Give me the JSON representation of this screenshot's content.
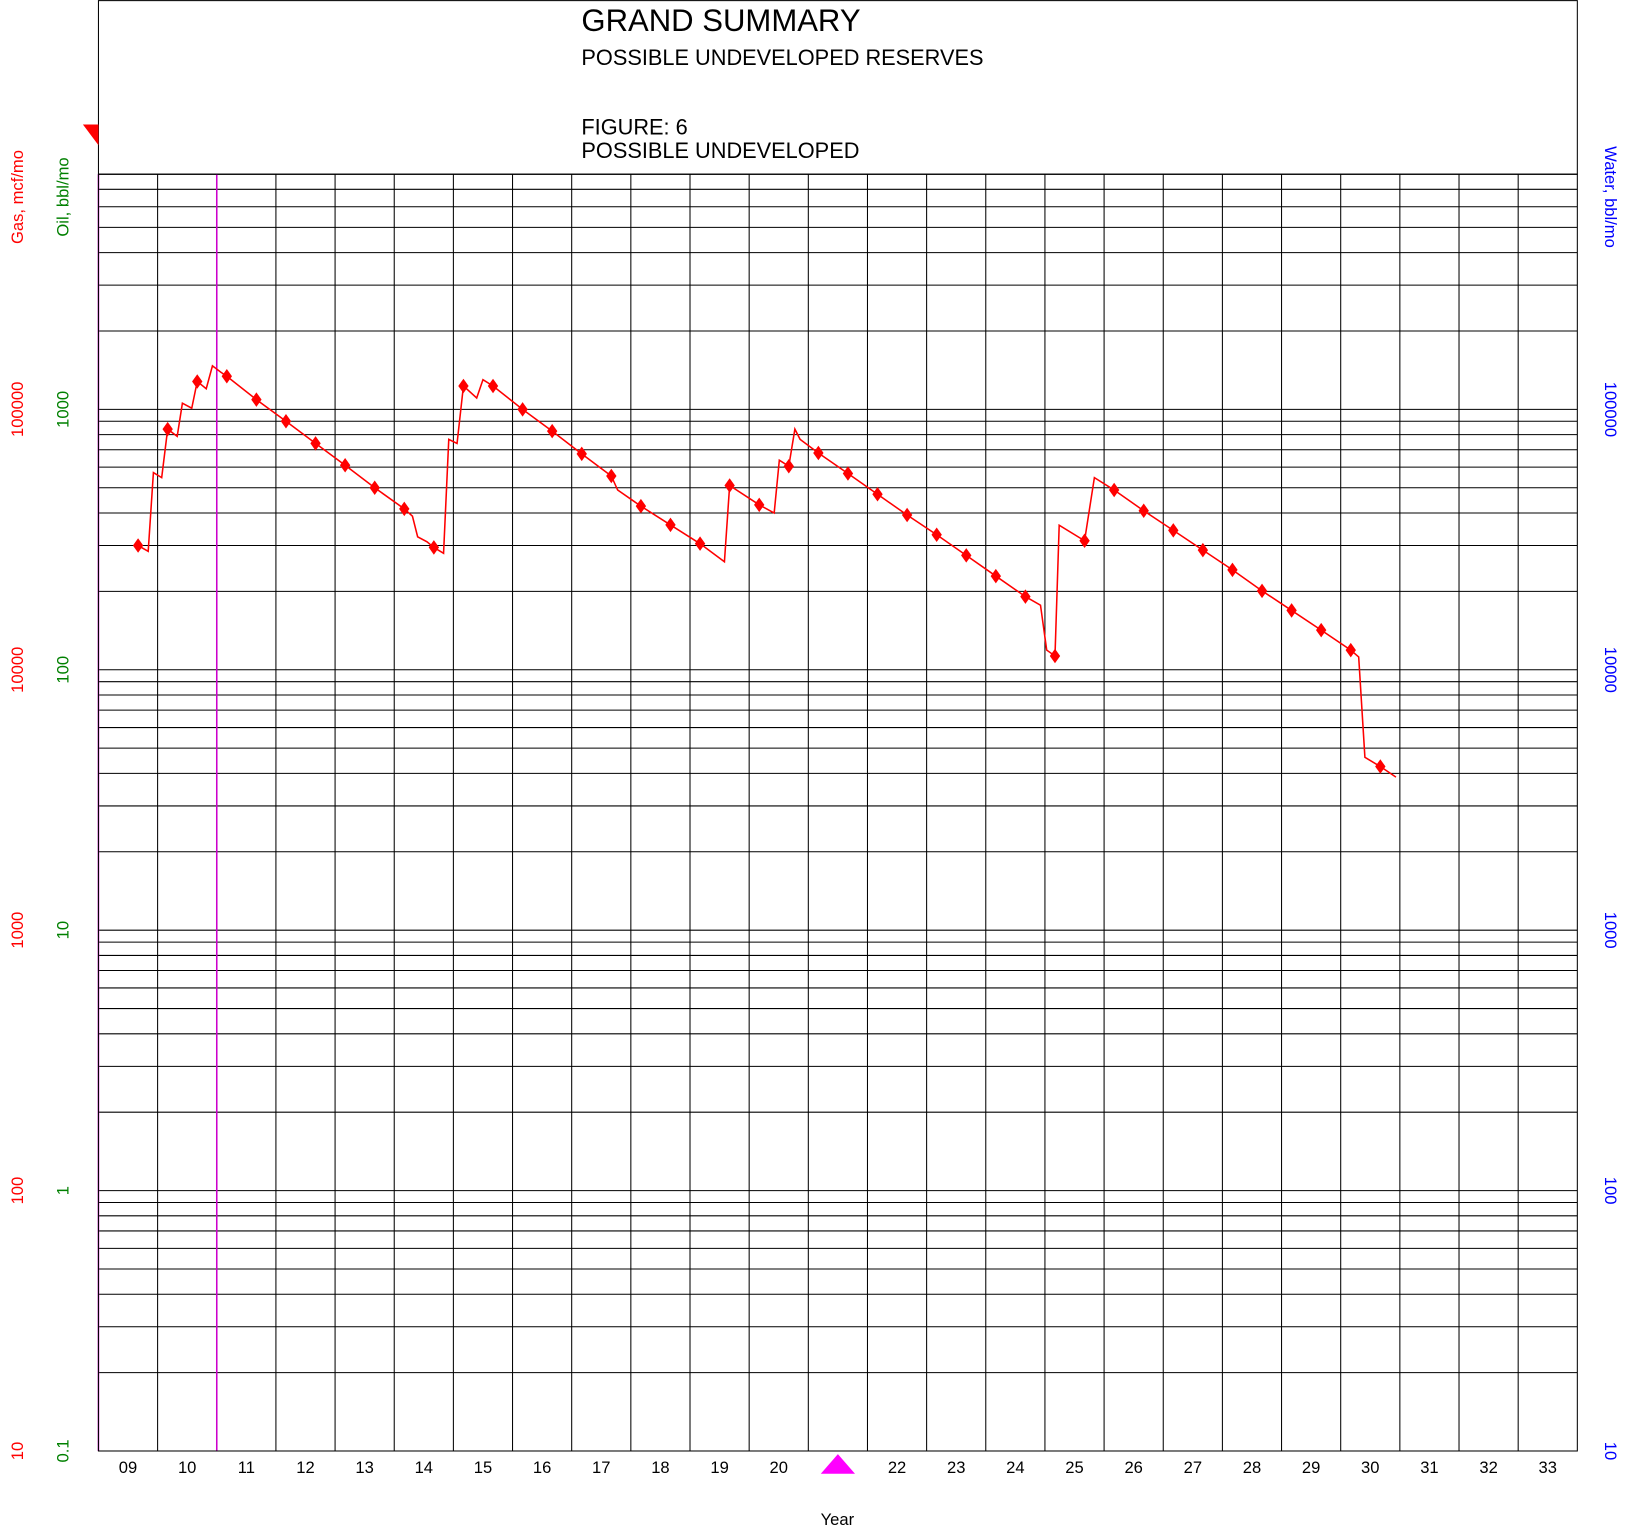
{
  "chart_data": {
    "type": "line",
    "title": "GRAND SUMMARY",
    "subtitle": "POSSIBLE UNDEVELOPED RESERVES",
    "figure_label": "FIGURE: 6",
    "figure_caption": "POSSIBLE UNDEVELOPED",
    "x_label": "Year",
    "y_label": "Gas, mcf/mo",
    "oil_label": "Oil, bbl/mo",
    "y2_label": "Water, bbl/mo",
    "log_scale": true,
    "grid": true,
    "xlim": [
      9,
      34
    ],
    "xticks": [
      {
        "value": 9.5,
        "label": "09"
      },
      {
        "value": 10.5,
        "label": "10"
      },
      {
        "value": 11.5,
        "label": "11"
      },
      {
        "value": 12.5,
        "label": "12"
      },
      {
        "value": 13.5,
        "label": "13"
      },
      {
        "value": 14.5,
        "label": "14"
      },
      {
        "value": 15.5,
        "label": "15"
      },
      {
        "value": 16.5,
        "label": "16"
      },
      {
        "value": 17.5,
        "label": "17"
      },
      {
        "value": 18.5,
        "label": "18"
      },
      {
        "value": 19.5,
        "label": "19"
      },
      {
        "value": 20.5,
        "label": "20"
      },
      {
        "value": 22.5,
        "label": "22"
      },
      {
        "value": 23.5,
        "label": "23"
      },
      {
        "value": 24.5,
        "label": "24"
      },
      {
        "value": 25.5,
        "label": "25"
      },
      {
        "value": 26.5,
        "label": "26"
      },
      {
        "value": 27.5,
        "label": "27"
      },
      {
        "value": 28.5,
        "label": "28"
      },
      {
        "value": 29.5,
        "label": "29"
      },
      {
        "value": 30.5,
        "label": "30"
      },
      {
        "value": 31.5,
        "label": "31"
      },
      {
        "value": 32.5,
        "label": "32"
      },
      {
        "value": 33.5,
        "label": "33"
      }
    ],
    "xgrid": [
      10,
      11,
      12,
      13,
      14,
      15,
      16,
      17,
      18,
      19,
      20,
      21,
      22,
      23,
      24,
      25,
      26,
      27,
      28,
      29,
      30,
      31,
      32,
      33
    ],
    "vlines": [
      9,
      11
    ],
    "vline_color": "#cc00cc",
    "ylim": [
      10,
      800000
    ],
    "yticks": [
      10,
      100,
      1000,
      10000,
      100000
    ],
    "y_color": "#ff0000",
    "ygrid": [
      10,
      20,
      30,
      40,
      50,
      60,
      70,
      80,
      90,
      100,
      200,
      300,
      400,
      500,
      600,
      700,
      800,
      900,
      1000,
      2000,
      3000,
      4000,
      5000,
      6000,
      7000,
      8000,
      9000,
      10000,
      20000,
      30000,
      40000,
      50000,
      60000,
      70000,
      80000,
      90000,
      100000,
      200000,
      300000,
      400000,
      500000,
      600000,
      700000,
      800000
    ],
    "oil_ylim": [
      0.1,
      8000
    ],
    "oil_yticks": [
      0.1,
      1,
      10,
      100,
      1000
    ],
    "oil_color": "#008000",
    "y2lim": [
      10,
      800000
    ],
    "y2ticks": [
      10,
      100,
      1000,
      10000,
      100000
    ],
    "y2_color": "#0000ff",
    "series": [
      {
        "color": "#ff0000",
        "marker": "none",
        "x": [
          9.67,
          9.841,
          9.929,
          10.069,
          10.17,
          10.331,
          10.419,
          10.577,
          10.67,
          10.822,
          10.927,
          11.067,
          11.17,
          11.67,
          12.17,
          12.67,
          13.17,
          13.67,
          14.17,
          14.308,
          14.396,
          14.554,
          14.67,
          14.834,
          14.922,
          15.062,
          15.17,
          15.394,
          15.5,
          15.67,
          16.17,
          16.67,
          17.17,
          17.67,
          17.777,
          18.17,
          18.67,
          19.17,
          19.582,
          19.67,
          20.17,
          20.423,
          20.51,
          20.67,
          20.773,
          20.861,
          21.17,
          21.67,
          22.17,
          22.67,
          23.17,
          23.67,
          24.17,
          24.67,
          24.925,
          25.03,
          25.17,
          25.241,
          25.67,
          25.836,
          26.17,
          26.67,
          27.17,
          27.67,
          28.17,
          28.67,
          29.17,
          29.67,
          30.17,
          30.304,
          30.409,
          30.67,
          30.934
        ],
        "values": [
          30000,
          28500,
          57200,
          54700,
          84000,
          78800,
          105600,
          101000,
          128000,
          120000,
          147000,
          139000,
          134000,
          109000,
          90000,
          74000,
          61000,
          50000,
          41500,
          38900,
          32400,
          31000,
          29500,
          28000,
          76700,
          74000,
          123000,
          110600,
          130000,
          123000,
          100000,
          82500,
          67500,
          55500,
          49000,
          42500,
          36000,
          30500,
          26000,
          51000,
          43000,
          40000,
          63800,
          60500,
          84000,
          76700,
          68000,
          56700,
          47200,
          39300,
          33000,
          27500,
          22900,
          19100,
          17700,
          11900,
          11300,
          35900,
          31300,
          54700,
          49000,
          40800,
          34300,
          28800,
          24200,
          20100,
          16900,
          14200,
          11900,
          11200,
          4610,
          4250,
          3870
        ]
      },
      {
        "color": "#ff0000",
        "marker": "diamond",
        "x": [
          9.67,
          10.17,
          10.67,
          11.17,
          11.67,
          12.17,
          12.67,
          13.17,
          13.67,
          14.17,
          14.67,
          15.17,
          15.67,
          16.17,
          16.67,
          17.17,
          17.67,
          18.17,
          18.67,
          19.17,
          19.67,
          20.17,
          20.67,
          21.17,
          21.67,
          22.17,
          22.67,
          23.17,
          23.67,
          24.17,
          24.67,
          25.17,
          25.67,
          26.17,
          26.67,
          27.17,
          27.67,
          28.17,
          28.67,
          29.17,
          29.67,
          30.17,
          30.67
        ],
        "values": [
          30000,
          84000,
          128000,
          134000,
          109000,
          90000,
          74000,
          61000,
          50000,
          41500,
          29500,
          123000,
          123000,
          100000,
          82500,
          67500,
          55500,
          42500,
          36000,
          30500,
          51000,
          43000,
          60500,
          68000,
          56700,
          47200,
          39300,
          33000,
          27500,
          22900,
          19100,
          11300,
          31300,
          49000,
          40800,
          34300,
          28800,
          24200,
          20100,
          16900,
          14200,
          11900,
          4250
        ]
      }
    ]
  }
}
